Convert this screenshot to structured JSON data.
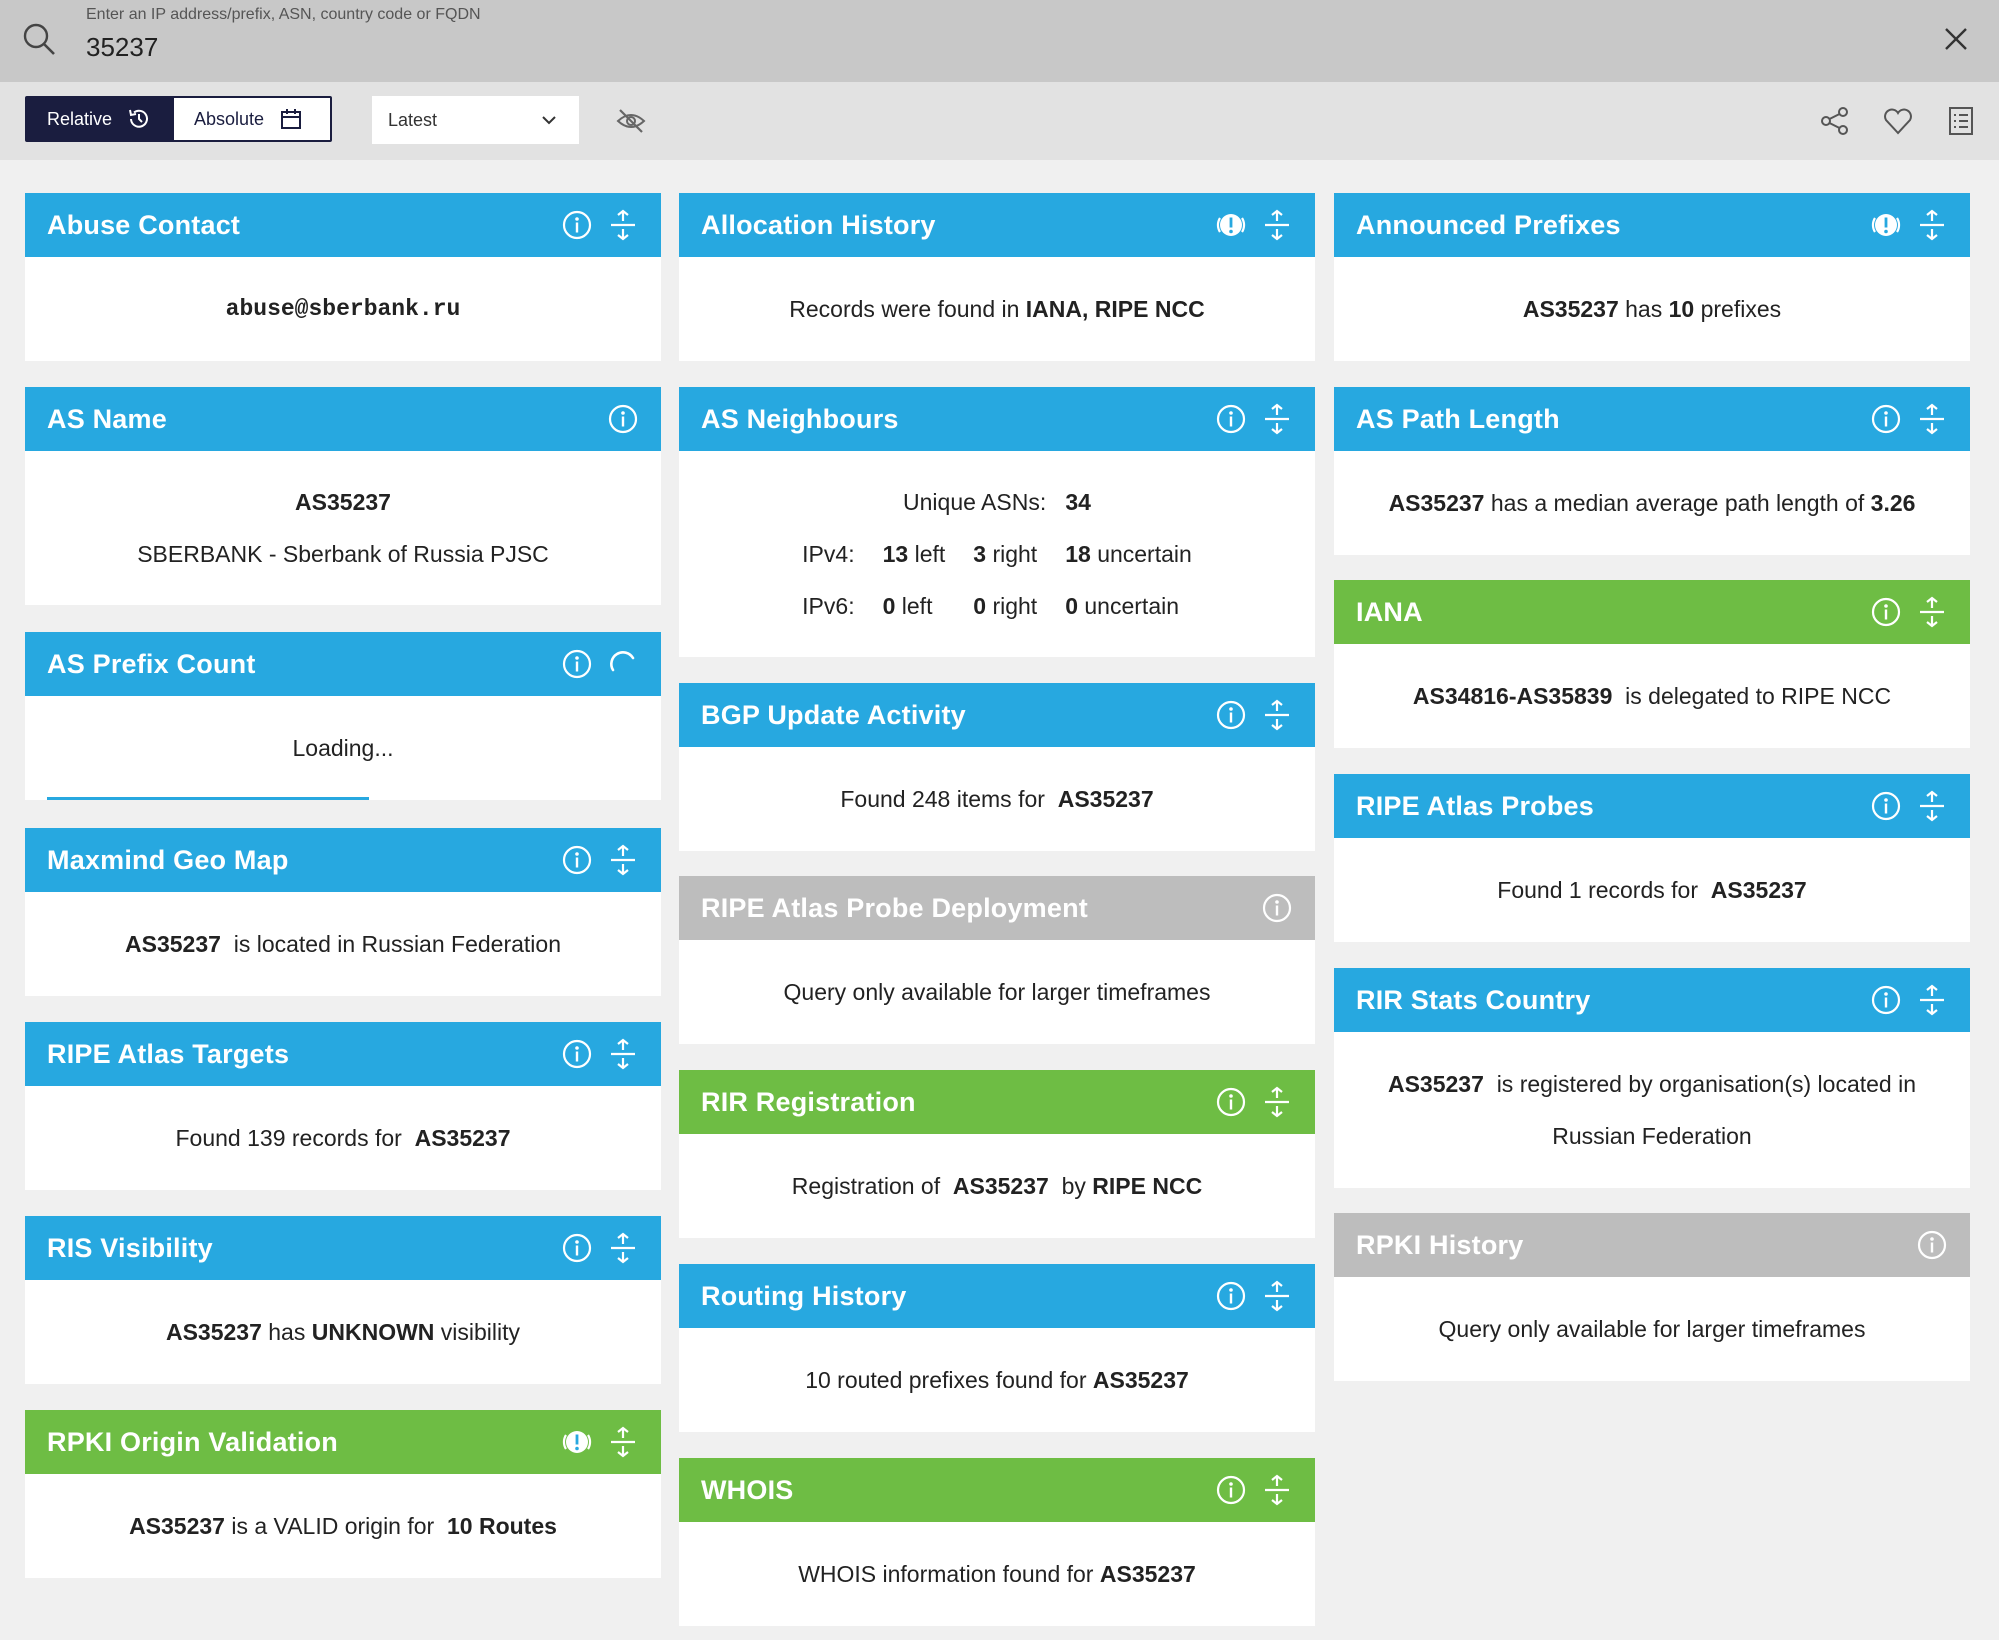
{
  "search": {
    "placeholder": "Enter an IP address/prefix, ASN, country code or FQDN",
    "value": "35237"
  },
  "toolbar": {
    "relative_label": "Relative",
    "absolute_label": "Absolute",
    "time_select_value": "Latest"
  },
  "widgets": {
    "abuse_contact": {
      "title": "Abuse Contact",
      "email": "abuse@sberbank.ru"
    },
    "as_name": {
      "title": "AS Name",
      "asn": "AS35237",
      "name": "SBERBANK - Sberbank of Russia PJSC"
    },
    "as_prefix_count": {
      "title": "AS Prefix Count",
      "status": "Loading..."
    },
    "maxmind": {
      "title": "Maxmind Geo Map",
      "asn": "AS35237",
      "text": "is located in Russian Federation"
    },
    "atlas_targets": {
      "title": "RIPE Atlas Targets",
      "text": "Found 139 records for",
      "asn": "AS35237"
    },
    "ris_visibility": {
      "title": "RIS Visibility",
      "asn": "AS35237",
      "has": "has",
      "status": "UNKNOWN",
      "suffix": "visibility"
    },
    "rpki_origin": {
      "title": "RPKI Origin Validation",
      "asn": "AS35237",
      "text": "is a VALID origin for",
      "routes": "10 Routes"
    },
    "allocation_history": {
      "title": "Allocation History",
      "text": "Records were found in",
      "sources": "IANA, RIPE NCC"
    },
    "as_neighbours": {
      "title": "AS Neighbours",
      "unique_label": "Unique ASNs:",
      "unique_value": "34",
      "ipv4_label": "IPv4:",
      "ipv4_left": "13",
      "ipv4_right": "3",
      "ipv4_uncertain": "18",
      "ipv6_label": "IPv6:",
      "ipv6_left": "0",
      "ipv6_right": "0",
      "ipv6_uncertain": "0",
      "left_word": "left",
      "right_word": "right",
      "uncertain_word": "uncertain"
    },
    "bgp_update": {
      "title": "BGP Update Activity",
      "text": "Found 248 items for",
      "asn": "AS35237"
    },
    "atlas_probe_deployment": {
      "title": "RIPE Atlas Probe Deployment",
      "text": "Query only available for larger timeframes"
    },
    "rir_registration": {
      "title": "RIR Registration",
      "prefix": "Registration of",
      "asn": "AS35237",
      "by": "by",
      "rir": "RIPE NCC"
    },
    "routing_history": {
      "title": "Routing History",
      "text": "10 routed prefixes found for",
      "asn": "AS35237"
    },
    "whois": {
      "title": "WHOIS",
      "text": "WHOIS information found for",
      "asn": "AS35237"
    },
    "announced_prefixes": {
      "title": "Announced Prefixes",
      "asn": "AS35237",
      "has": "has",
      "count": "10",
      "suffix": "prefixes"
    },
    "as_path_length": {
      "title": "AS Path Length",
      "asn": "AS35237",
      "text": "has a median average path length of",
      "value": "3.26"
    },
    "iana": {
      "title": "IANA",
      "range": "AS34816-AS35839",
      "text": "is delegated to RIPE NCC"
    },
    "atlas_probes": {
      "title": "RIPE Atlas Probes",
      "text": "Found 1 records for",
      "asn": "AS35237"
    },
    "rir_stats_country": {
      "title": "RIR Stats Country",
      "asn": "AS35237",
      "text": "is registered by organisation(s) located in",
      "country": "Russian Federation"
    },
    "rpki_history": {
      "title": "RPKI History",
      "text": "Query only available for larger timeframes"
    }
  },
  "colors": {
    "blue": "#27a8e0",
    "green": "#6ebd44",
    "grey": "#bdbdbd",
    "navy": "#1a1d3f"
  }
}
